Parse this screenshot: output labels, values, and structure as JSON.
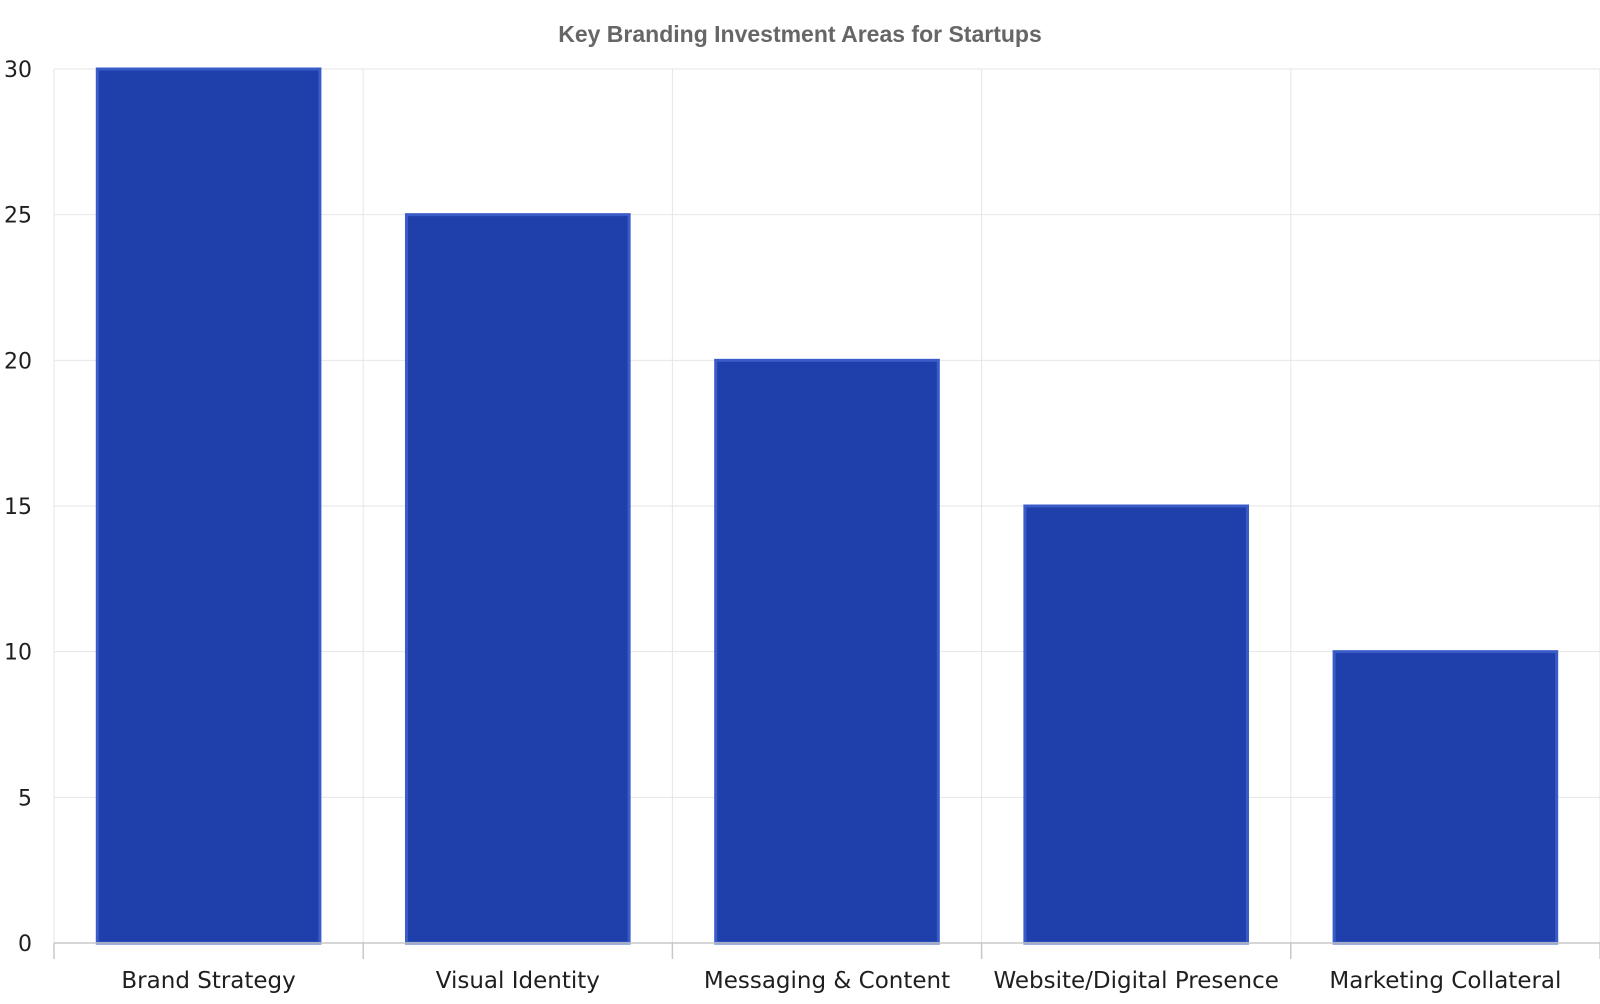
{
  "chart_data": {
    "type": "bar",
    "title": "Key Branding Investment Areas for Startups",
    "xlabel": "",
    "ylabel": "",
    "categories": [
      "Brand Strategy",
      "Visual Identity",
      "Messaging & Content",
      "Website/Digital Presence",
      "Marketing Collateral"
    ],
    "values": [
      30,
      25,
      20,
      15,
      10
    ],
    "ylim": [
      0,
      30
    ],
    "yticks": [
      0,
      5,
      10,
      15,
      20,
      25,
      30
    ],
    "grid": true,
    "legend": "none",
    "colors": {
      "bar_fill": "#1f40aa",
      "bar_stroke": "#3a5cc8",
      "title": "#666666",
      "grid": "#e6e6e6",
      "axis": "#c8c8c8",
      "text": "#1f1f1f"
    }
  }
}
